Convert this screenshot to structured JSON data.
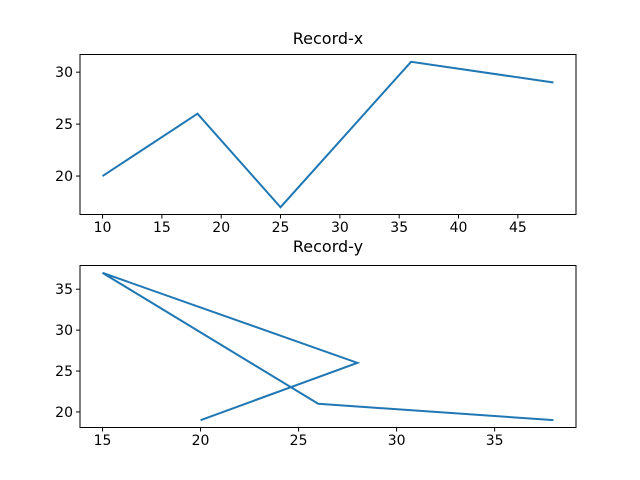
{
  "figure": {
    "background": "#ffffff",
    "line_color": "#1f77b4",
    "spine_color": "#000000",
    "tick_color": "#000000"
  },
  "chart_data": [
    {
      "type": "line",
      "title": "Record-x",
      "x": [
        10,
        18,
        25,
        36,
        48
      ],
      "y": [
        20,
        26,
        17,
        31,
        29
      ],
      "xticks": [
        10,
        15,
        20,
        25,
        30,
        35,
        40,
        45
      ],
      "yticks": [
        20,
        25,
        30
      ],
      "xlim": [
        8.1,
        49.9
      ],
      "ylim": [
        16.3,
        31.7
      ],
      "xlabel": "",
      "ylabel": "",
      "grid": false,
      "legend": null,
      "line_color": "#1f77b4"
    },
    {
      "type": "line",
      "title": "Record-y",
      "x": [
        20,
        28,
        15,
        26,
        38
      ],
      "y": [
        19,
        26,
        37,
        21,
        19
      ],
      "xticks": [
        15,
        20,
        25,
        30,
        35
      ],
      "yticks": [
        20,
        25,
        30,
        35
      ],
      "xlim": [
        13.85,
        39.15
      ],
      "ylim": [
        18.1,
        37.9
      ],
      "xlabel": "",
      "ylabel": "",
      "grid": false,
      "legend": null,
      "line_color": "#1f77b4"
    }
  ]
}
